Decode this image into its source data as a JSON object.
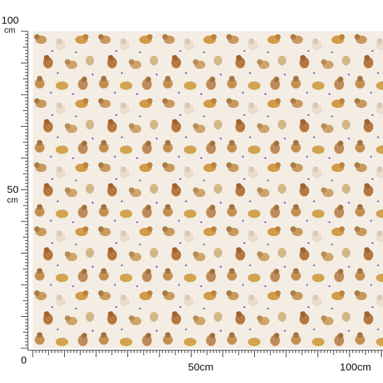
{
  "left_ruler": {
    "labels": [
      {
        "number": "100",
        "unit": "cm"
      },
      {
        "number": "50",
        "unit": "cm"
      }
    ]
  },
  "origin": "0",
  "bottom_ruler": {
    "labels": [
      "50cm",
      "100cm"
    ]
  }
}
